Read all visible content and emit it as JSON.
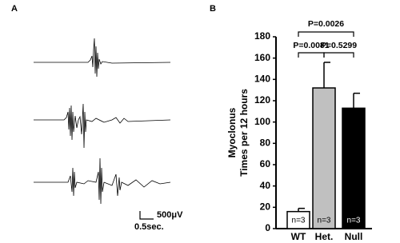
{
  "panels": {
    "a": "A",
    "b": "B"
  },
  "scale_bar": {
    "vertical": "500μV",
    "horizontal": "0.5sec."
  },
  "chart_data": {
    "type": "bar",
    "ylabel": [
      "Myoclonus",
      "Times per 12 hours"
    ],
    "categories": [
      "WT",
      "Het.",
      "Null"
    ],
    "values": [
      16,
      132,
      113
    ],
    "errors": [
      3,
      24,
      14
    ],
    "colors": [
      "#ffffff",
      "#c0c0c0",
      "#000000"
    ],
    "bar_labels": [
      "n=3",
      "n=3",
      "n=3"
    ],
    "annotations": [
      "P=0.0026",
      "P=0.0081",
      "P=0.5299"
    ],
    "ylim": [
      0,
      180
    ],
    "yticks": [
      0,
      20,
      40,
      60,
      80,
      100,
      120,
      140,
      160,
      180
    ]
  }
}
